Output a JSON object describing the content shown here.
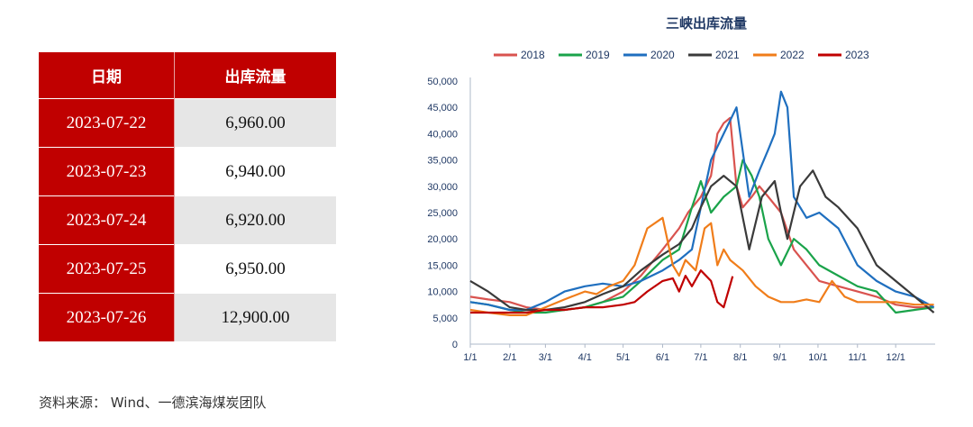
{
  "table": {
    "headers": [
      "日期",
      "出库流量"
    ],
    "rows": [
      {
        "date": "2023-07-22",
        "value": "6,960.00"
      },
      {
        "date": "2023-07-23",
        "value": "6,940.00"
      },
      {
        "date": "2023-07-24",
        "value": "6,920.00"
      },
      {
        "date": "2023-07-25",
        "value": "6,950.00"
      },
      {
        "date": "2023-07-26",
        "value": "12,900.00"
      }
    ]
  },
  "source": "资料来源：  Wind、一德滨海煤炭团队",
  "chart_data": {
    "type": "line",
    "title": "三峡出库流量",
    "legend_position": "top",
    "grid": false,
    "ylim": [
      0,
      50000
    ],
    "y_ticks": [
      0,
      5000,
      10000,
      15000,
      20000,
      25000,
      30000,
      35000,
      40000,
      45000,
      50000
    ],
    "y_tick_labels": [
      "0",
      "5,000",
      "10,000",
      "15,000",
      "20,000",
      "25,000",
      "30,000",
      "35,000",
      "40,000",
      "45,000",
      "50,000"
    ],
    "x_unit": "day of year",
    "xlim": [
      1,
      366
    ],
    "x_ticks": [
      1,
      32,
      60,
      91,
      121,
      152,
      182,
      213,
      244,
      274,
      305,
      335
    ],
    "x_tick_labels": [
      "1/1",
      "2/1",
      "3/1",
      "4/1",
      "5/1",
      "6/1",
      "7/1",
      "8/1",
      "9/1",
      "10/1",
      "11/1",
      "12/1"
    ],
    "series": [
      {
        "name": "2018",
        "color": "#d9534f",
        "x": [
          1,
          15,
          32,
          45,
          60,
          75,
          91,
          105,
          121,
          135,
          152,
          165,
          172,
          182,
          190,
          195,
          200,
          205,
          210,
          215,
          222,
          228,
          235,
          245,
          255,
          265,
          275,
          290,
          305,
          320,
          335,
          350,
          365
        ],
        "y": [
          9000,
          8500,
          8000,
          7000,
          6500,
          6500,
          7000,
          8000,
          10000,
          13000,
          18000,
          22000,
          25000,
          28000,
          32000,
          40000,
          42000,
          43000,
          30000,
          26000,
          28000,
          30000,
          28000,
          25000,
          18000,
          15000,
          12000,
          11000,
          10000,
          9000,
          7500,
          7000,
          7000
        ]
      },
      {
        "name": "2019",
        "color": "#1aa34a",
        "x": [
          1,
          15,
          32,
          45,
          60,
          75,
          91,
          105,
          121,
          135,
          152,
          165,
          175,
          182,
          190,
          200,
          210,
          215,
          222,
          228,
          235,
          245,
          255,
          265,
          275,
          290,
          305,
          320,
          335,
          350,
          365
        ],
        "y": [
          8000,
          7500,
          6500,
          6000,
          6000,
          6500,
          7000,
          8000,
          9000,
          12000,
          16000,
          18000,
          26000,
          31000,
          25000,
          28000,
          30000,
          35000,
          32000,
          28000,
          20000,
          15000,
          20000,
          18000,
          15000,
          13000,
          11000,
          10000,
          6000,
          6500,
          7000
        ]
      },
      {
        "name": "2020",
        "color": "#1f6fbf",
        "x": [
          1,
          15,
          32,
          45,
          60,
          75,
          91,
          105,
          121,
          135,
          152,
          165,
          175,
          182,
          190,
          200,
          210,
          220,
          228,
          235,
          240,
          245,
          250,
          255,
          265,
          275,
          290,
          305,
          320,
          335,
          350,
          365
        ],
        "y": [
          8000,
          7500,
          6500,
          6500,
          8000,
          10000,
          11000,
          11500,
          11000,
          12000,
          14000,
          16000,
          18000,
          26000,
          35000,
          40000,
          45000,
          28000,
          33000,
          37000,
          40000,
          48000,
          45000,
          28000,
          24000,
          25000,
          22000,
          15000,
          12000,
          10000,
          9000,
          7000
        ]
      },
      {
        "name": "2021",
        "color": "#3a3a3a",
        "x": [
          1,
          15,
          32,
          45,
          60,
          75,
          91,
          105,
          121,
          135,
          152,
          165,
          175,
          182,
          190,
          200,
          210,
          220,
          230,
          240,
          245,
          250,
          260,
          270,
          280,
          290,
          305,
          320,
          335,
          350,
          365
        ],
        "y": [
          12000,
          10000,
          7000,
          6500,
          6500,
          7000,
          8000,
          9500,
          11000,
          14000,
          17000,
          19000,
          22000,
          26000,
          30000,
          32000,
          30000,
          18000,
          28000,
          31000,
          25000,
          20000,
          30000,
          33000,
          28000,
          26000,
          22000,
          15000,
          12000,
          9000,
          6000
        ]
      },
      {
        "name": "2022",
        "color": "#f07d1a",
        "x": [
          1,
          15,
          32,
          45,
          60,
          75,
          91,
          100,
          110,
          121,
          130,
          140,
          152,
          160,
          165,
          170,
          178,
          185,
          190,
          195,
          200,
          205,
          215,
          225,
          235,
          245,
          255,
          265,
          275,
          285,
          295,
          305,
          320,
          335,
          350,
          365
        ],
        "y": [
          6500,
          6000,
          5500,
          5500,
          7000,
          8500,
          10000,
          9500,
          11000,
          12000,
          15000,
          22000,
          24000,
          15000,
          13000,
          16000,
          14000,
          22000,
          23000,
          15000,
          18000,
          16000,
          14000,
          11000,
          9000,
          8000,
          8000,
          8500,
          8000,
          12000,
          9000,
          8000,
          8000,
          8000,
          7500,
          7500
        ]
      },
      {
        "name": "2023",
        "color": "#c00000",
        "x": [
          1,
          15,
          32,
          45,
          60,
          75,
          91,
          105,
          121,
          130,
          140,
          152,
          160,
          165,
          170,
          175,
          182,
          190,
          195,
          200,
          207
        ],
        "y": [
          6000,
          6000,
          6000,
          6000,
          6500,
          6500,
          7000,
          7000,
          7500,
          8000,
          10000,
          12000,
          12500,
          10000,
          13000,
          11000,
          14000,
          12000,
          8000,
          7000,
          12900
        ]
      }
    ]
  }
}
